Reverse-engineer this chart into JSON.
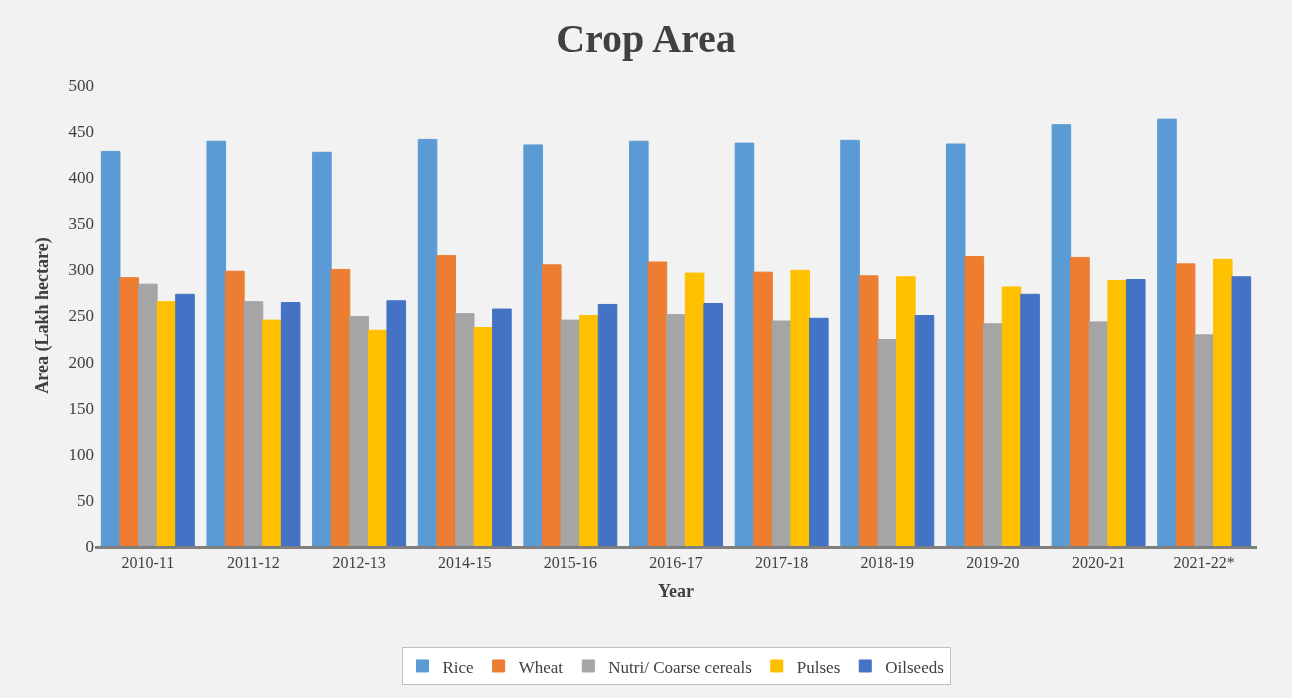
{
  "chart_data": {
    "type": "bar",
    "title": "Crop Area",
    "xlabel": "Year",
    "ylabel": "Area (Lakh hectare)",
    "categories": [
      "2010-11",
      "2011-12",
      "2012-13",
      "2014-15",
      "2015-16",
      "2016-17",
      "2017-18",
      "2018-19",
      "2019-20",
      "2020-21",
      "2021-22*"
    ],
    "series": [
      {
        "name": "Rice",
        "color": "#5b9bd5",
        "values": [
          428,
          439,
          427,
          441,
          435,
          439,
          437,
          440,
          436,
          457,
          463
        ]
      },
      {
        "name": "Wheat",
        "color": "#ed7d31",
        "values": [
          291,
          298,
          300,
          315,
          305,
          308,
          297,
          293,
          314,
          313,
          306
        ]
      },
      {
        "name": "Nutri/ Coarse cereals",
        "color": "#a5a5a5",
        "values": [
          284,
          265,
          249,
          252,
          245,
          251,
          244,
          224,
          241,
          243,
          229
        ]
      },
      {
        "name": "Pulses",
        "color": "#ffc000",
        "values": [
          265,
          245,
          234,
          237,
          250,
          296,
          299,
          292,
          281,
          288,
          311
        ]
      },
      {
        "name": "Oilseeds",
        "color": "#4472c4",
        "values": [
          273,
          264,
          266,
          257,
          262,
          263,
          247,
          250,
          273,
          289,
          292
        ]
      }
    ],
    "ylim": [
      0,
      500
    ],
    "yticks": [
      0,
      50,
      100,
      150,
      200,
      250,
      300,
      350,
      400,
      450,
      500
    ],
    "grid": false,
    "legend": "bottom"
  }
}
